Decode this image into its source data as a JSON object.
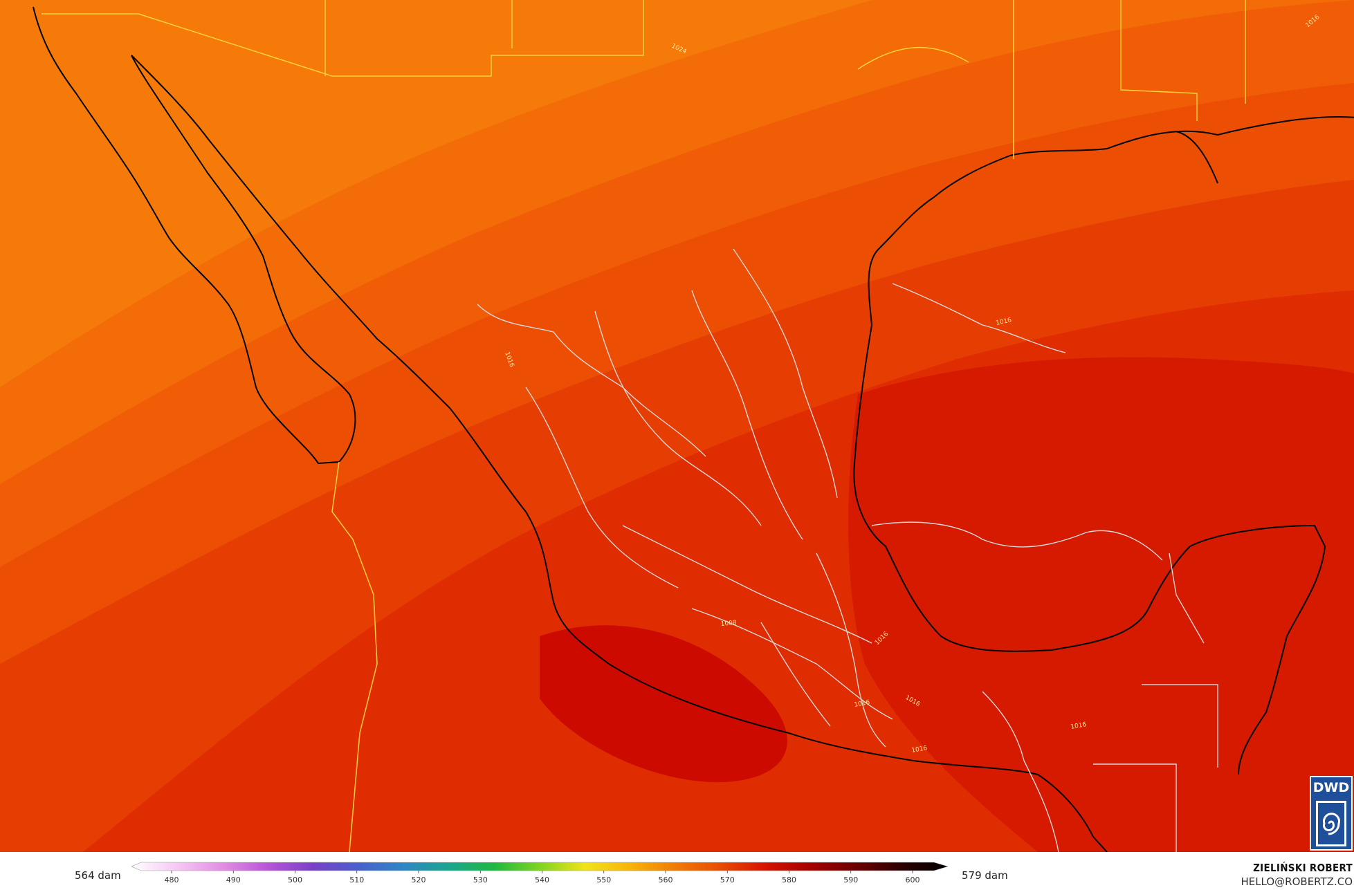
{
  "map": {
    "contour_labels": [
      "1024",
      "1016",
      "1016",
      "1016",
      "1008",
      "1016",
      "1016",
      "1016",
      "1016",
      "1016"
    ]
  },
  "colors": {
    "field_levels": [
      "#f57a0a",
      "#f36c08",
      "#f05d06",
      "#ec4e04",
      "#e63e02",
      "#df2c00",
      "#d51a00",
      "#cc0a00"
    ],
    "coastline": "#000000",
    "border_yellow": "#ffd23c",
    "border_grey": "#d8d8d8"
  },
  "legend": {
    "min_label": "564 dam",
    "max_label": "579 dam",
    "ticks": [
      "480",
      "490",
      "500",
      "510",
      "520",
      "530",
      "540",
      "550",
      "560",
      "570",
      "580",
      "590",
      "600"
    ],
    "gradient_stops": [
      "#ffffff",
      "#f6c8f4",
      "#e28ee4",
      "#b855d6",
      "#7a40c8",
      "#4a5fcd",
      "#2f86c3",
      "#1aa58e",
      "#1eb840",
      "#7fd420",
      "#f1e418",
      "#f7b40a",
      "#f17a06",
      "#e84a02",
      "#d61200",
      "#a50000",
      "#6a0000",
      "#2a0000",
      "#000000"
    ]
  },
  "logo": {
    "text": "DWD"
  },
  "credit": {
    "name": "ZIELIŃSKI ROBERT",
    "email": "HELLO@ROBERTZ.CO"
  }
}
